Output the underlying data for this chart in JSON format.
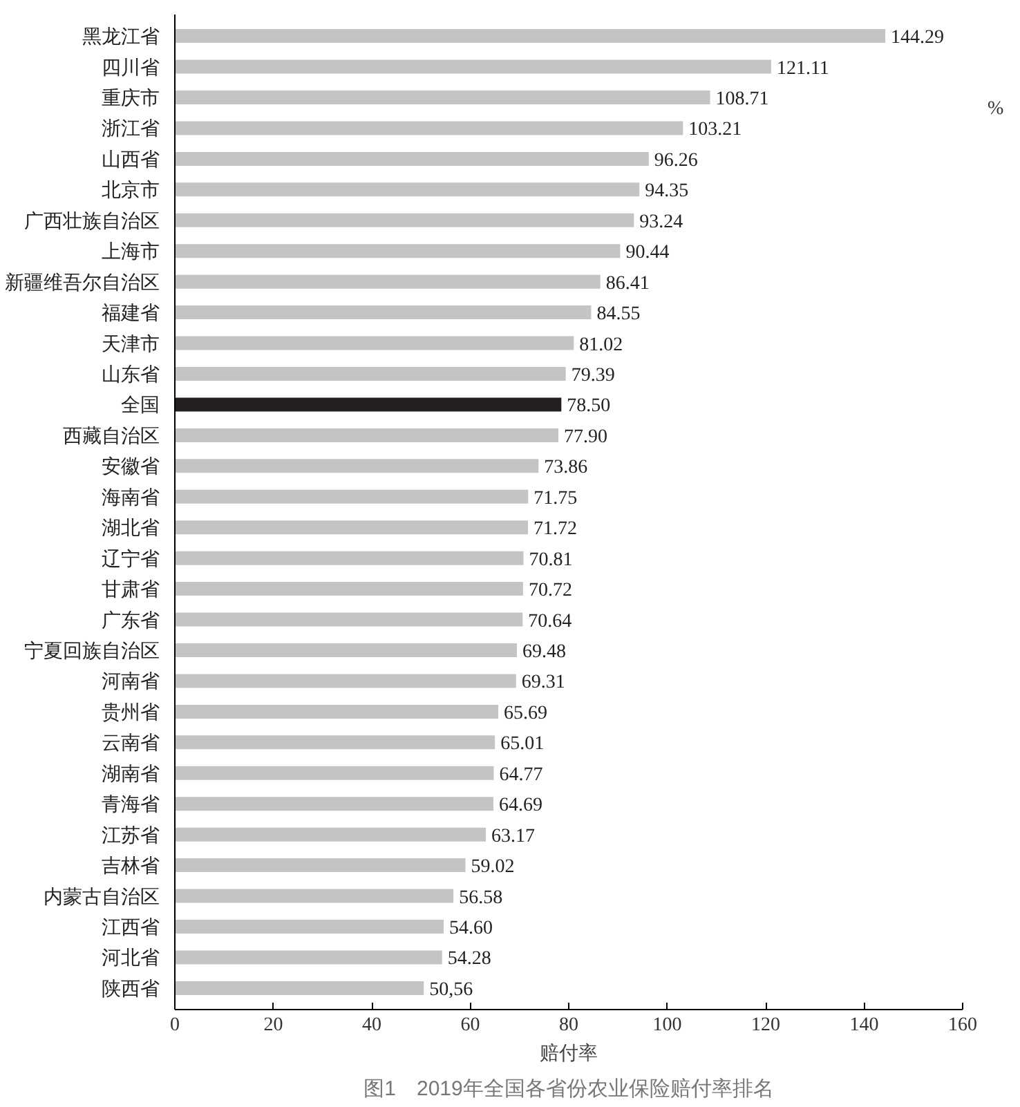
{
  "chart_data": {
    "type": "bar",
    "orientation": "horizontal",
    "xlabel": "赔付率",
    "categories": [
      "黑龙江省",
      "四川省",
      "重庆市",
      "浙江省",
      "山西省",
      "北京市",
      "广西壮族自治区",
      "上海市",
      "新疆维吾尔自治区",
      "福建省",
      "天津市",
      "山东省",
      "全国",
      "西藏自治区",
      "安徽省",
      "海南省",
      "湖北省",
      "辽宁省",
      "甘肃省",
      "广东省",
      "宁夏回族自治区",
      "河南省",
      "贵州省",
      "云南省",
      "湖南省",
      "青海省",
      "江苏省",
      "吉林省",
      "内蒙古自治区",
      "江西省",
      "河北省",
      "陕西省"
    ],
    "values": [
      144.29,
      121.11,
      108.71,
      103.21,
      96.26,
      94.35,
      93.24,
      90.44,
      86.41,
      84.55,
      81.02,
      79.39,
      78.5,
      77.9,
      73.86,
      71.75,
      71.72,
      70.81,
      70.72,
      70.64,
      69.48,
      69.31,
      65.69,
      65.01,
      64.77,
      64.69,
      63.17,
      59.02,
      56.58,
      54.6,
      54.28,
      50.56
    ],
    "value_labels": [
      "144.29",
      "121.11",
      "108.71",
      "103.21",
      "96.26",
      "94.35",
      "93.24",
      "90.44",
      "86.41",
      "84.55",
      "81.02",
      "79.39",
      "78.50",
      "77.90",
      "73.86",
      "71.75",
      "71.72",
      "70.81",
      "70.72",
      "70.64",
      "69.48",
      "69.31",
      "65.69",
      "65.01",
      "64.77",
      "64.69",
      "63.17",
      "59.02",
      "56.58",
      "54.60",
      "54.28",
      "50,56"
    ],
    "colors": [
      "#c4c4c4",
      "#c4c4c4",
      "#c4c4c4",
      "#c4c4c4",
      "#c4c4c4",
      "#c4c4c4",
      "#c4c4c4",
      "#c4c4c4",
      "#c4c4c4",
      "#c4c4c4",
      "#c4c4c4",
      "#c4c4c4",
      "#231f20",
      "#c4c4c4",
      "#c4c4c4",
      "#c4c4c4",
      "#c4c4c4",
      "#c4c4c4",
      "#c4c4c4",
      "#c4c4c4",
      "#c4c4c4",
      "#c4c4c4",
      "#c4c4c4",
      "#c4c4c4",
      "#c4c4c4",
      "#c4c4c4",
      "#c4c4c4",
      "#c4c4c4",
      "#c4c4c4",
      "#c4c4c4",
      "#c4c4c4",
      "#c4c4c4"
    ],
    "xlim": [
      0,
      160
    ],
    "xticks": [
      0,
      20,
      40,
      60,
      80,
      100,
      120,
      140,
      160
    ],
    "grid": false,
    "annotations": [
      "%",
      "图1　2019年全国各省份农业保险赔付率排名"
    ]
  }
}
